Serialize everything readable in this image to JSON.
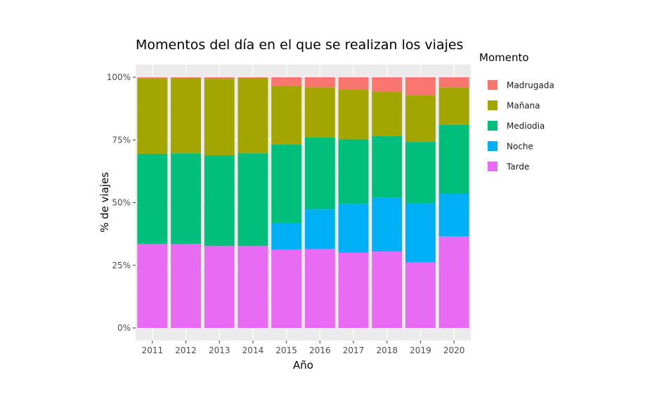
{
  "chart_data": {
    "type": "bar",
    "stacked": true,
    "percent": true,
    "title": "Momentos del día en el que se realizan los viajes",
    "xlabel": "Año",
    "ylabel": "% de viajes",
    "categories": [
      "2011",
      "2012",
      "2013",
      "2014",
      "2015",
      "2016",
      "2017",
      "2018",
      "2019",
      "2020"
    ],
    "y_ticks": [
      "0%",
      "25%",
      "50%",
      "75%",
      "100%"
    ],
    "ylim": [
      0,
      1
    ],
    "legend": {
      "title": "Momento",
      "position": "right",
      "items": [
        "Madrugada",
        "Mañana",
        "Mediodia",
        "Noche",
        "Tarde"
      ]
    },
    "series": [
      {
        "name": "Tarde",
        "color": "#E76BF3",
        "values": [
          0.335,
          0.335,
          0.327,
          0.327,
          0.312,
          0.315,
          0.3,
          0.305,
          0.262,
          0.365
        ]
      },
      {
        "name": "Noche",
        "color": "#00B0F6",
        "values": [
          0.0,
          0.0,
          0.0,
          0.0,
          0.108,
          0.158,
          0.195,
          0.215,
          0.235,
          0.17
        ]
      },
      {
        "name": "Mediodia",
        "color": "#00BF7D",
        "values": [
          0.36,
          0.362,
          0.362,
          0.37,
          0.312,
          0.287,
          0.257,
          0.245,
          0.245,
          0.275
        ]
      },
      {
        "name": "Mañana",
        "color": "#A3A500",
        "values": [
          0.3,
          0.3,
          0.305,
          0.3,
          0.233,
          0.2,
          0.2,
          0.178,
          0.185,
          0.15
        ]
      },
      {
        "name": "Madrugada",
        "color": "#F8766D",
        "values": [
          0.005,
          0.003,
          0.006,
          0.003,
          0.035,
          0.04,
          0.048,
          0.057,
          0.073,
          0.04
        ]
      }
    ],
    "grid": true
  }
}
